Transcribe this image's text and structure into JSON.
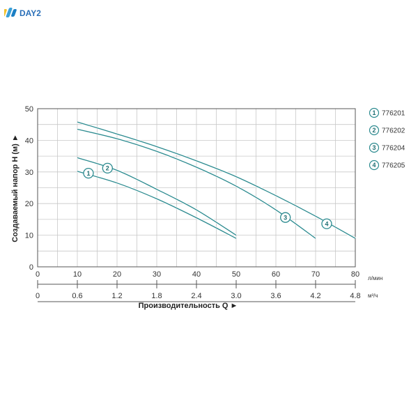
{
  "brand": {
    "name": "DAY2",
    "colors": {
      "mark": [
        "#f2c12e",
        "#3aa0d8",
        "#1b7fc4"
      ],
      "text": "#2a6fb8"
    }
  },
  "chart_data": {
    "type": "line",
    "title": "",
    "ylabel": "Создаваемый напор H (м) ►",
    "xlabel": "Производительность Q ►",
    "x_unit": "л/мин",
    "x2_unit": "м³/ч",
    "xlim": [
      0,
      80
    ],
    "ylim": [
      0,
      50
    ],
    "x_ticks": [
      "0",
      "10",
      "20",
      "30",
      "40",
      "50",
      "60",
      "70",
      "80"
    ],
    "x2_ticks": [
      "0",
      "0.6",
      "1.2",
      "1.8",
      "2.4",
      "3.0",
      "3.6",
      "4.2",
      "4.8"
    ],
    "y_ticks": [
      "0",
      "10",
      "20",
      "30",
      "40",
      "50"
    ],
    "grid": true,
    "line_color": "#2b8a8f",
    "series": [
      {
        "name": "776201",
        "label": "1",
        "x": [
          10,
          20,
          30,
          40,
          50
        ],
        "y": [
          30.2,
          26.5,
          21.5,
          15.5,
          9
        ]
      },
      {
        "name": "776202",
        "label": "2",
        "x": [
          10,
          20,
          30,
          40,
          50
        ],
        "y": [
          34.5,
          30.5,
          24.5,
          18,
          10
        ]
      },
      {
        "name": "776204",
        "label": "3",
        "x": [
          10,
          20,
          30,
          40,
          50,
          60,
          70
        ],
        "y": [
          43.5,
          40.5,
          36.5,
          31.5,
          25.5,
          18,
          9
        ]
      },
      {
        "name": "776205",
        "label": "4",
        "x": [
          10,
          20,
          30,
          40,
          50,
          60,
          70,
          80
        ],
        "y": [
          45.8,
          42,
          38,
          33.5,
          28.5,
          22.5,
          16,
          9
        ]
      }
    ],
    "legend": {
      "placement": "right",
      "items": [
        {
          "num": "1",
          "text": "776201"
        },
        {
          "num": "2",
          "text": "776202"
        },
        {
          "num": "3",
          "text": "776204"
        },
        {
          "num": "4",
          "text": "776205"
        }
      ]
    },
    "curve_labels": [
      {
        "num": "1",
        "x": 12.8,
        "y": 29.6
      },
      {
        "num": "2",
        "x": 17.6,
        "y": 31.2
      },
      {
        "num": "3",
        "x": 62.4,
        "y": 15.6
      },
      {
        "num": "4",
        "x": 72.8,
        "y": 13.6
      }
    ]
  }
}
